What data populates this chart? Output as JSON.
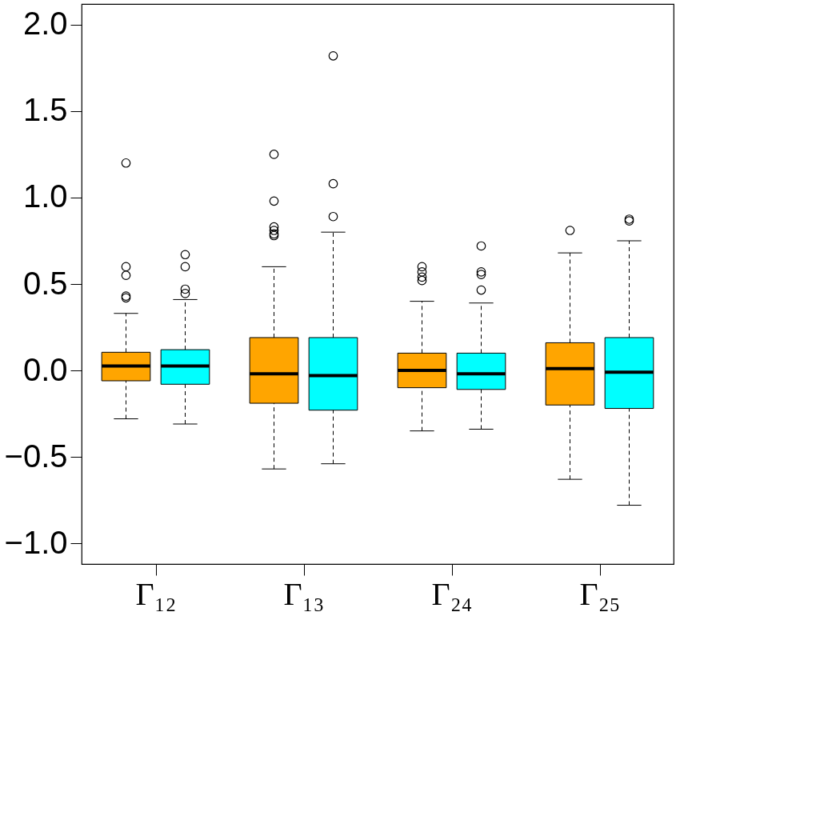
{
  "chart_data": {
    "type": "box",
    "categories": [
      "Γ₁₂",
      "Γ₁₃",
      "Γ₂₄",
      "Γ₂₅"
    ],
    "ylim": [
      -1.12,
      2.12
    ],
    "yticks": [
      {
        "value": -1,
        "label": "−1.0"
      },
      {
        "value": -0.5,
        "label": "−0.5"
      },
      {
        "value": 0,
        "label": "0.0"
      },
      {
        "value": 0.5,
        "label": "0.5"
      },
      {
        "value": 1,
        "label": "1.0"
      },
      {
        "value": 1.5,
        "label": "1.5"
      },
      {
        "value": 2,
        "label": "2.0"
      }
    ],
    "grid": false,
    "line_style": "dashed",
    "marker": "circle",
    "series": [
      {
        "color": "#ffa500",
        "boxes": [
          {
            "low": -0.28,
            "q1": -0.06,
            "median": 0.025,
            "q3": 0.105,
            "high": 0.33,
            "outliers": [
              1.2,
              0.6,
              0.55,
              0.43,
              0.42
            ]
          },
          {
            "low": -0.57,
            "q1": -0.19,
            "median": -0.02,
            "q3": 0.19,
            "high": 0.6,
            "outliers": [
              1.25,
              0.98,
              0.83,
              0.81,
              0.79,
              0.78
            ]
          },
          {
            "low": -0.35,
            "q1": -0.1,
            "median": 0.0,
            "q3": 0.1,
            "high": 0.4,
            "outliers": [
              0.6,
              0.57,
              0.54,
              0.52
            ]
          },
          {
            "low": -0.63,
            "q1": -0.2,
            "median": 0.01,
            "q3": 0.16,
            "high": 0.68,
            "outliers": [
              0.81
            ]
          }
        ]
      },
      {
        "color": "#00ffff",
        "boxes": [
          {
            "low": -0.31,
            "q1": -0.08,
            "median": 0.025,
            "q3": 0.12,
            "high": 0.41,
            "outliers": [
              0.67,
              0.6,
              0.47,
              0.445
            ]
          },
          {
            "low": -0.54,
            "q1": -0.23,
            "median": -0.03,
            "q3": 0.19,
            "high": 0.8,
            "outliers": [
              1.82,
              1.08,
              0.89
            ]
          },
          {
            "low": -0.34,
            "q1": -0.11,
            "median": -0.02,
            "q3": 0.1,
            "high": 0.39,
            "outliers": [
              0.72,
              0.57,
              0.555,
              0.465
            ]
          },
          {
            "low": -0.78,
            "q1": -0.22,
            "median": -0.01,
            "q3": 0.19,
            "high": 0.75,
            "outliers": [
              0.875,
              0.865
            ]
          }
        ]
      }
    ]
  }
}
